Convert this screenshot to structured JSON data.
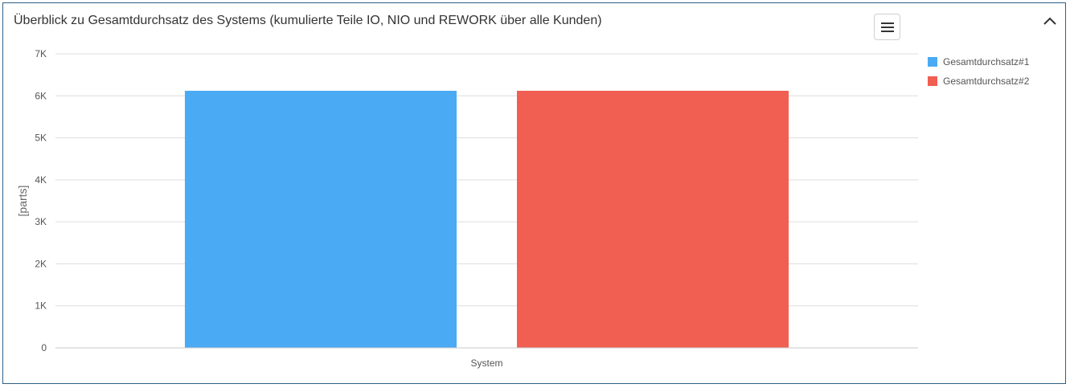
{
  "panel": {
    "title": "Überblick zu Gesamtdurchsatz des Systems (kumulierte Teile IO, NIO und REWORK über alle Kunden)",
    "menu_icon": "hamburger-menu-icon",
    "collapse_icon": "chevron-up-icon"
  },
  "chart_data": {
    "type": "bar",
    "categories": [
      "System"
    ],
    "series": [
      {
        "name": "Gesamtdurchsatz#1",
        "values": [
          6120
        ],
        "color": "#4aabf4"
      },
      {
        "name": "Gesamtdurchsatz#2",
        "values": [
          6120
        ],
        "color": "#f05f52"
      }
    ],
    "xlabel": "",
    "ylabel": "[parts]",
    "ylim": [
      0,
      7000
    ],
    "yticks": [
      0,
      1000,
      2000,
      3000,
      4000,
      5000,
      6000,
      7000
    ],
    "ytick_labels": [
      "0",
      "1K",
      "2K",
      "3K",
      "4K",
      "5K",
      "6K",
      "7K"
    ],
    "grid": true,
    "legend_position": "right"
  }
}
